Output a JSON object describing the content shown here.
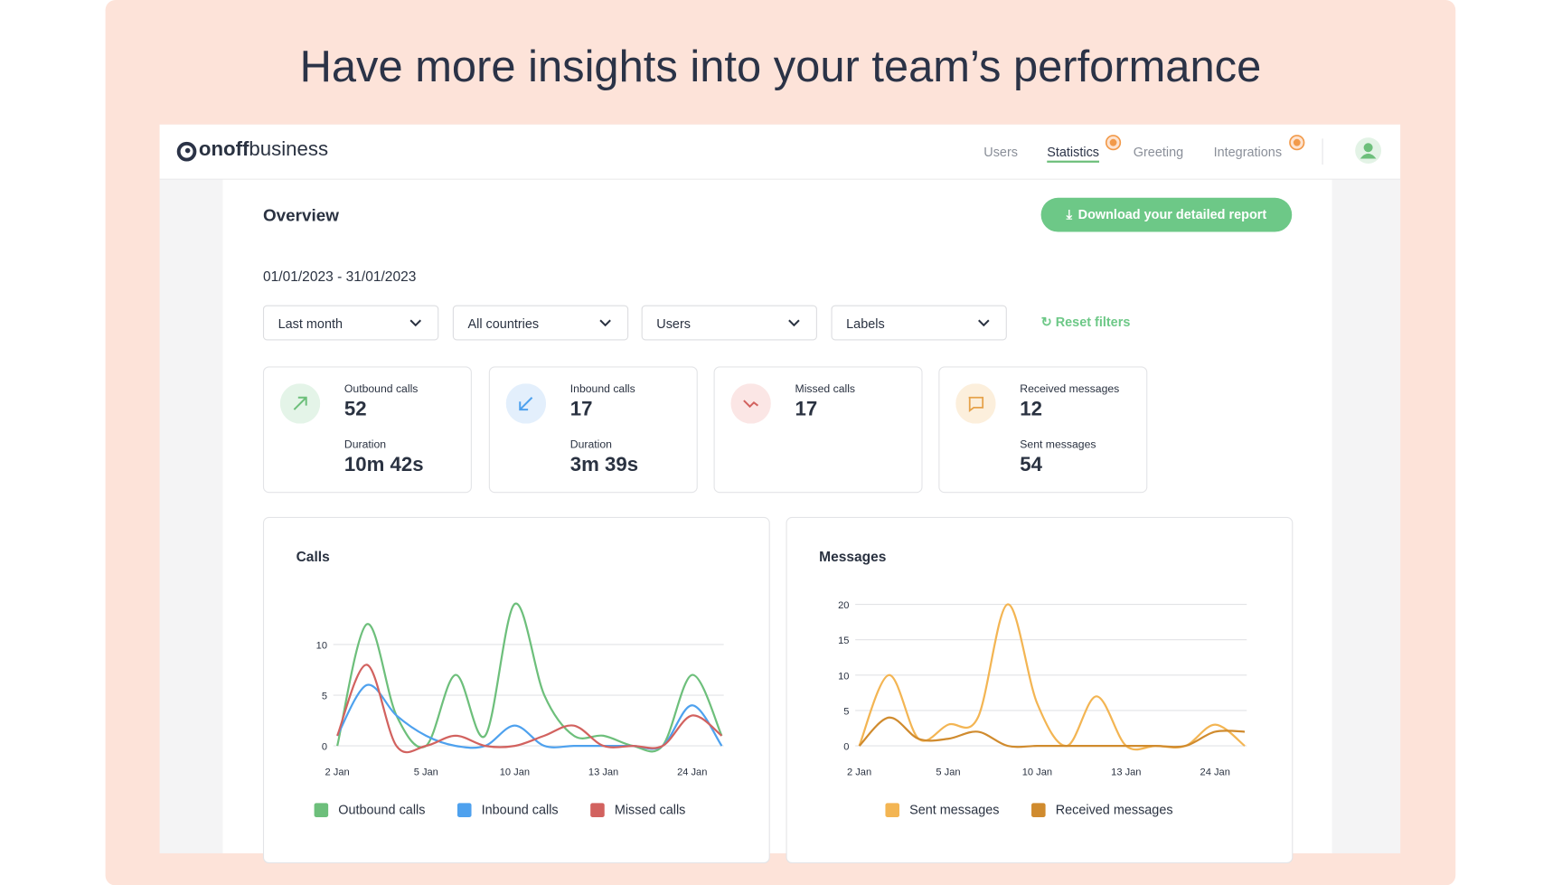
{
  "headline": "Have more insights into your team’s performance",
  "brand": {
    "name": "onoff",
    "suffix": "business"
  },
  "nav": [
    "Users",
    "Statistics",
    "Greeting",
    "Integrations"
  ],
  "overview": "Overview",
  "download_button": "Download your detailed report",
  "date_range": "01/01/2023 - 31/01/2023",
  "filters": [
    "Last month",
    "All countries",
    "Users",
    "Labels"
  ],
  "reset_filters": "Reset filters",
  "cards": [
    {
      "label": "Outbound calls",
      "value": 52,
      "sub_label": "Duration",
      "sub_value": "10m 42s"
    },
    {
      "label": "Inbound calls",
      "value": 17,
      "sub_label": "Duration",
      "sub_value": "3m 39s"
    },
    {
      "label": "Missed calls",
      "value": 17
    },
    {
      "label": "Received messages",
      "value": 12,
      "sub_label": "Sent messages",
      "sub_value": 54
    }
  ],
  "chart_data": [
    {
      "type": "line",
      "title": "Calls",
      "categories": [
        "2 Jan",
        null,
        null,
        "5 Jan",
        null,
        null,
        "10 Jan",
        null,
        null,
        "13 Jan",
        null,
        null,
        "24 Jan",
        null
      ],
      "series": [
        {
          "name": "Outbound calls",
          "color": "#6dbf7b",
          "values": [
            0,
            12,
            3,
            0,
            7,
            1,
            14,
            5,
            1,
            1,
            0,
            0,
            7,
            1
          ]
        },
        {
          "name": "Inbound calls",
          "color": "#4ea1ee",
          "values": [
            1,
            6,
            3,
            1,
            0,
            0,
            2,
            0,
            0,
            0,
            0,
            0,
            4,
            0
          ]
        },
        {
          "name": "Missed calls",
          "color": "#d2625f",
          "values": [
            1,
            8,
            0,
            0,
            1,
            0,
            0,
            1,
            2,
            0,
            0,
            0,
            3,
            1
          ]
        }
      ],
      "ylim": [
        0,
        15
      ],
      "yticks": [
        0,
        5,
        10
      ],
      "grid": true,
      "legend": "bottom"
    },
    {
      "type": "line",
      "title": "Messages",
      "categories": [
        "2 Jan",
        null,
        null,
        "5 Jan",
        null,
        null,
        "10 Jan",
        null,
        null,
        "13 Jan",
        null,
        null,
        "24 Jan",
        null
      ],
      "series": [
        {
          "name": "Sent messages",
          "color": "#f3b553",
          "values": [
            0,
            10,
            1,
            3,
            4,
            20,
            6,
            0,
            7,
            0,
            0,
            0,
            3,
            0
          ]
        },
        {
          "name": "Received messages",
          "color": "#d08b2e",
          "values": [
            0,
            4,
            1,
            1,
            2,
            0,
            0,
            0,
            0,
            0,
            0,
            0,
            2,
            2
          ]
        }
      ],
      "ylim": [
        0,
        20
      ],
      "yticks": [
        0,
        5,
        10,
        15,
        20
      ],
      "grid": true,
      "legend": "bottom"
    }
  ]
}
